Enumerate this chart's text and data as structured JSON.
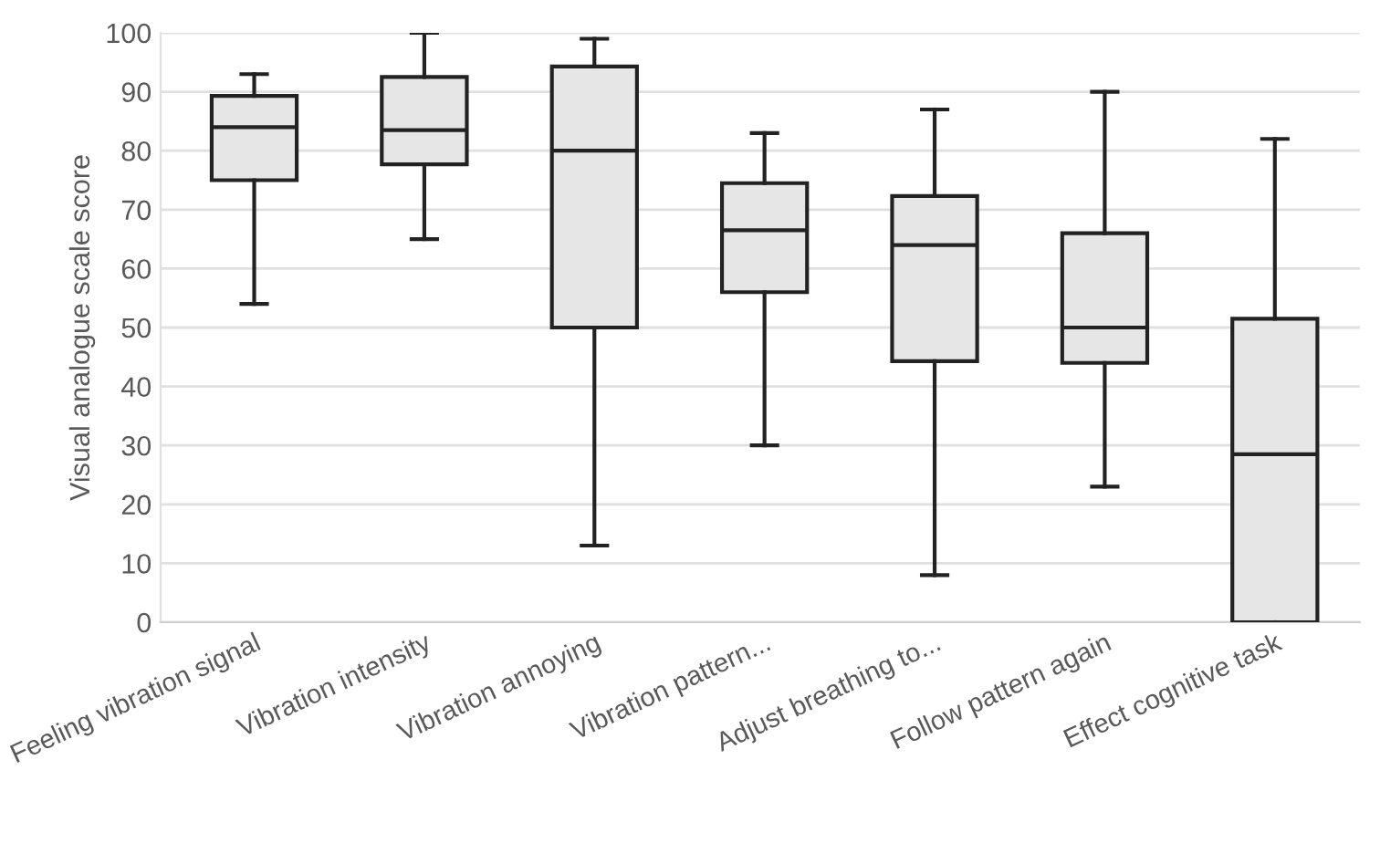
{
  "chart_data": {
    "type": "box",
    "ylabel": "Visual analogue scale score",
    "categories": [
      "Feeling vibration signal",
      "Vibration intensity",
      "Vibration annoying",
      "Vibration pattern...",
      "Adjust breathing to...",
      "Follow pattern again",
      "Effect cognitive task"
    ],
    "boxes": [
      {
        "low": 54,
        "q1": 75,
        "median": 84,
        "q3": 89.3,
        "high": 93
      },
      {
        "low": 65,
        "q1": 77.7,
        "median": 83.5,
        "q3": 92.5,
        "high": 100
      },
      {
        "low": 13,
        "q1": 50,
        "median": 80,
        "q3": 94.3,
        "high": 99
      },
      {
        "low": 30,
        "q1": 56,
        "median": 66.5,
        "q3": 74.5,
        "high": 83
      },
      {
        "low": 8,
        "q1": 44.3,
        "median": 64,
        "q3": 72.3,
        "high": 87
      },
      {
        "low": 23,
        "q1": 44,
        "median": 50,
        "q3": 66,
        "high": 90
      },
      {
        "low": 0,
        "q1": 0,
        "median": 28.5,
        "q3": 51.5,
        "high": 82
      }
    ],
    "color": "#e6e6e6",
    "ylim": [
      0,
      100
    ],
    "yticks": [
      0,
      10,
      20,
      30,
      40,
      50,
      60,
      70,
      80,
      90,
      100
    ],
    "grid": "y"
  }
}
